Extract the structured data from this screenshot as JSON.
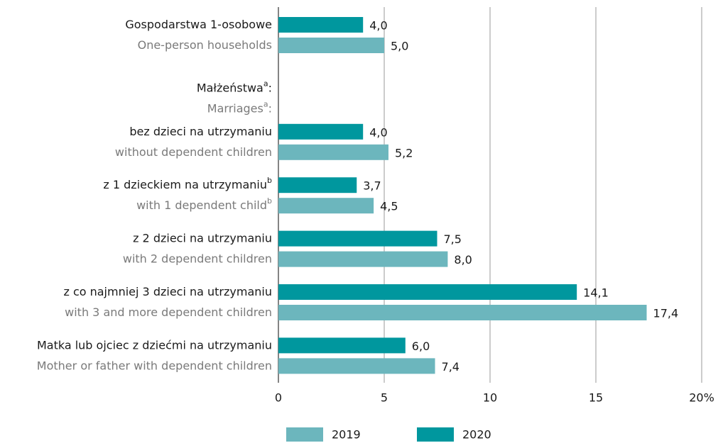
{
  "chart_data": {
    "type": "barh",
    "categories": [
      {
        "pl": "Gospodarstwa 1-osobowe",
        "en": "One-person households"
      },
      {
        "pl": "Małżeństwa",
        "pl_sup": "a",
        "pl_after": ":",
        "en": "Marriages",
        "en_sup": "a",
        "en_after": ":"
      },
      {
        "pl": "bez dzieci na utrzymaniu",
        "en": "without dependent children"
      },
      {
        "pl": "z 1 dzieckiem na utrzymaniu",
        "pl_sup": "b",
        "en": "with 1 dependent child",
        "en_sup": "b"
      },
      {
        "pl": "z 2 dzieci na utrzymaniu",
        "en": "with 2 dependent children"
      },
      {
        "pl": "z co najmniej 3 dzieci na utrzymaniu",
        "en": "with 3 and more dependent children"
      },
      {
        "pl": "Matka lub ojciec z dziećmi na utrzymaniu",
        "en": "Mother or father with dependent children"
      }
    ],
    "series": [
      {
        "name": "2019",
        "color": "#6cb6bd",
        "values": [
          5.0,
          null,
          5.2,
          4.5,
          8.0,
          17.4,
          7.4
        ],
        "value_labels": [
          "5,0",
          null,
          "5,2",
          "4,5",
          "8,0",
          "17,4",
          "7,4"
        ]
      },
      {
        "name": "2020",
        "color": "#00979e",
        "values": [
          4.0,
          null,
          4.0,
          3.7,
          7.5,
          14.1,
          6.0
        ],
        "value_labels": [
          "4,0",
          null,
          "4,0",
          "3,7",
          "7,5",
          "14,1",
          "6,0"
        ]
      }
    ],
    "xlim": [
      0,
      20
    ],
    "xticks": [
      0,
      5,
      10,
      15,
      {
        "value": 20,
        "label": "20%"
      }
    ],
    "grid": true
  }
}
